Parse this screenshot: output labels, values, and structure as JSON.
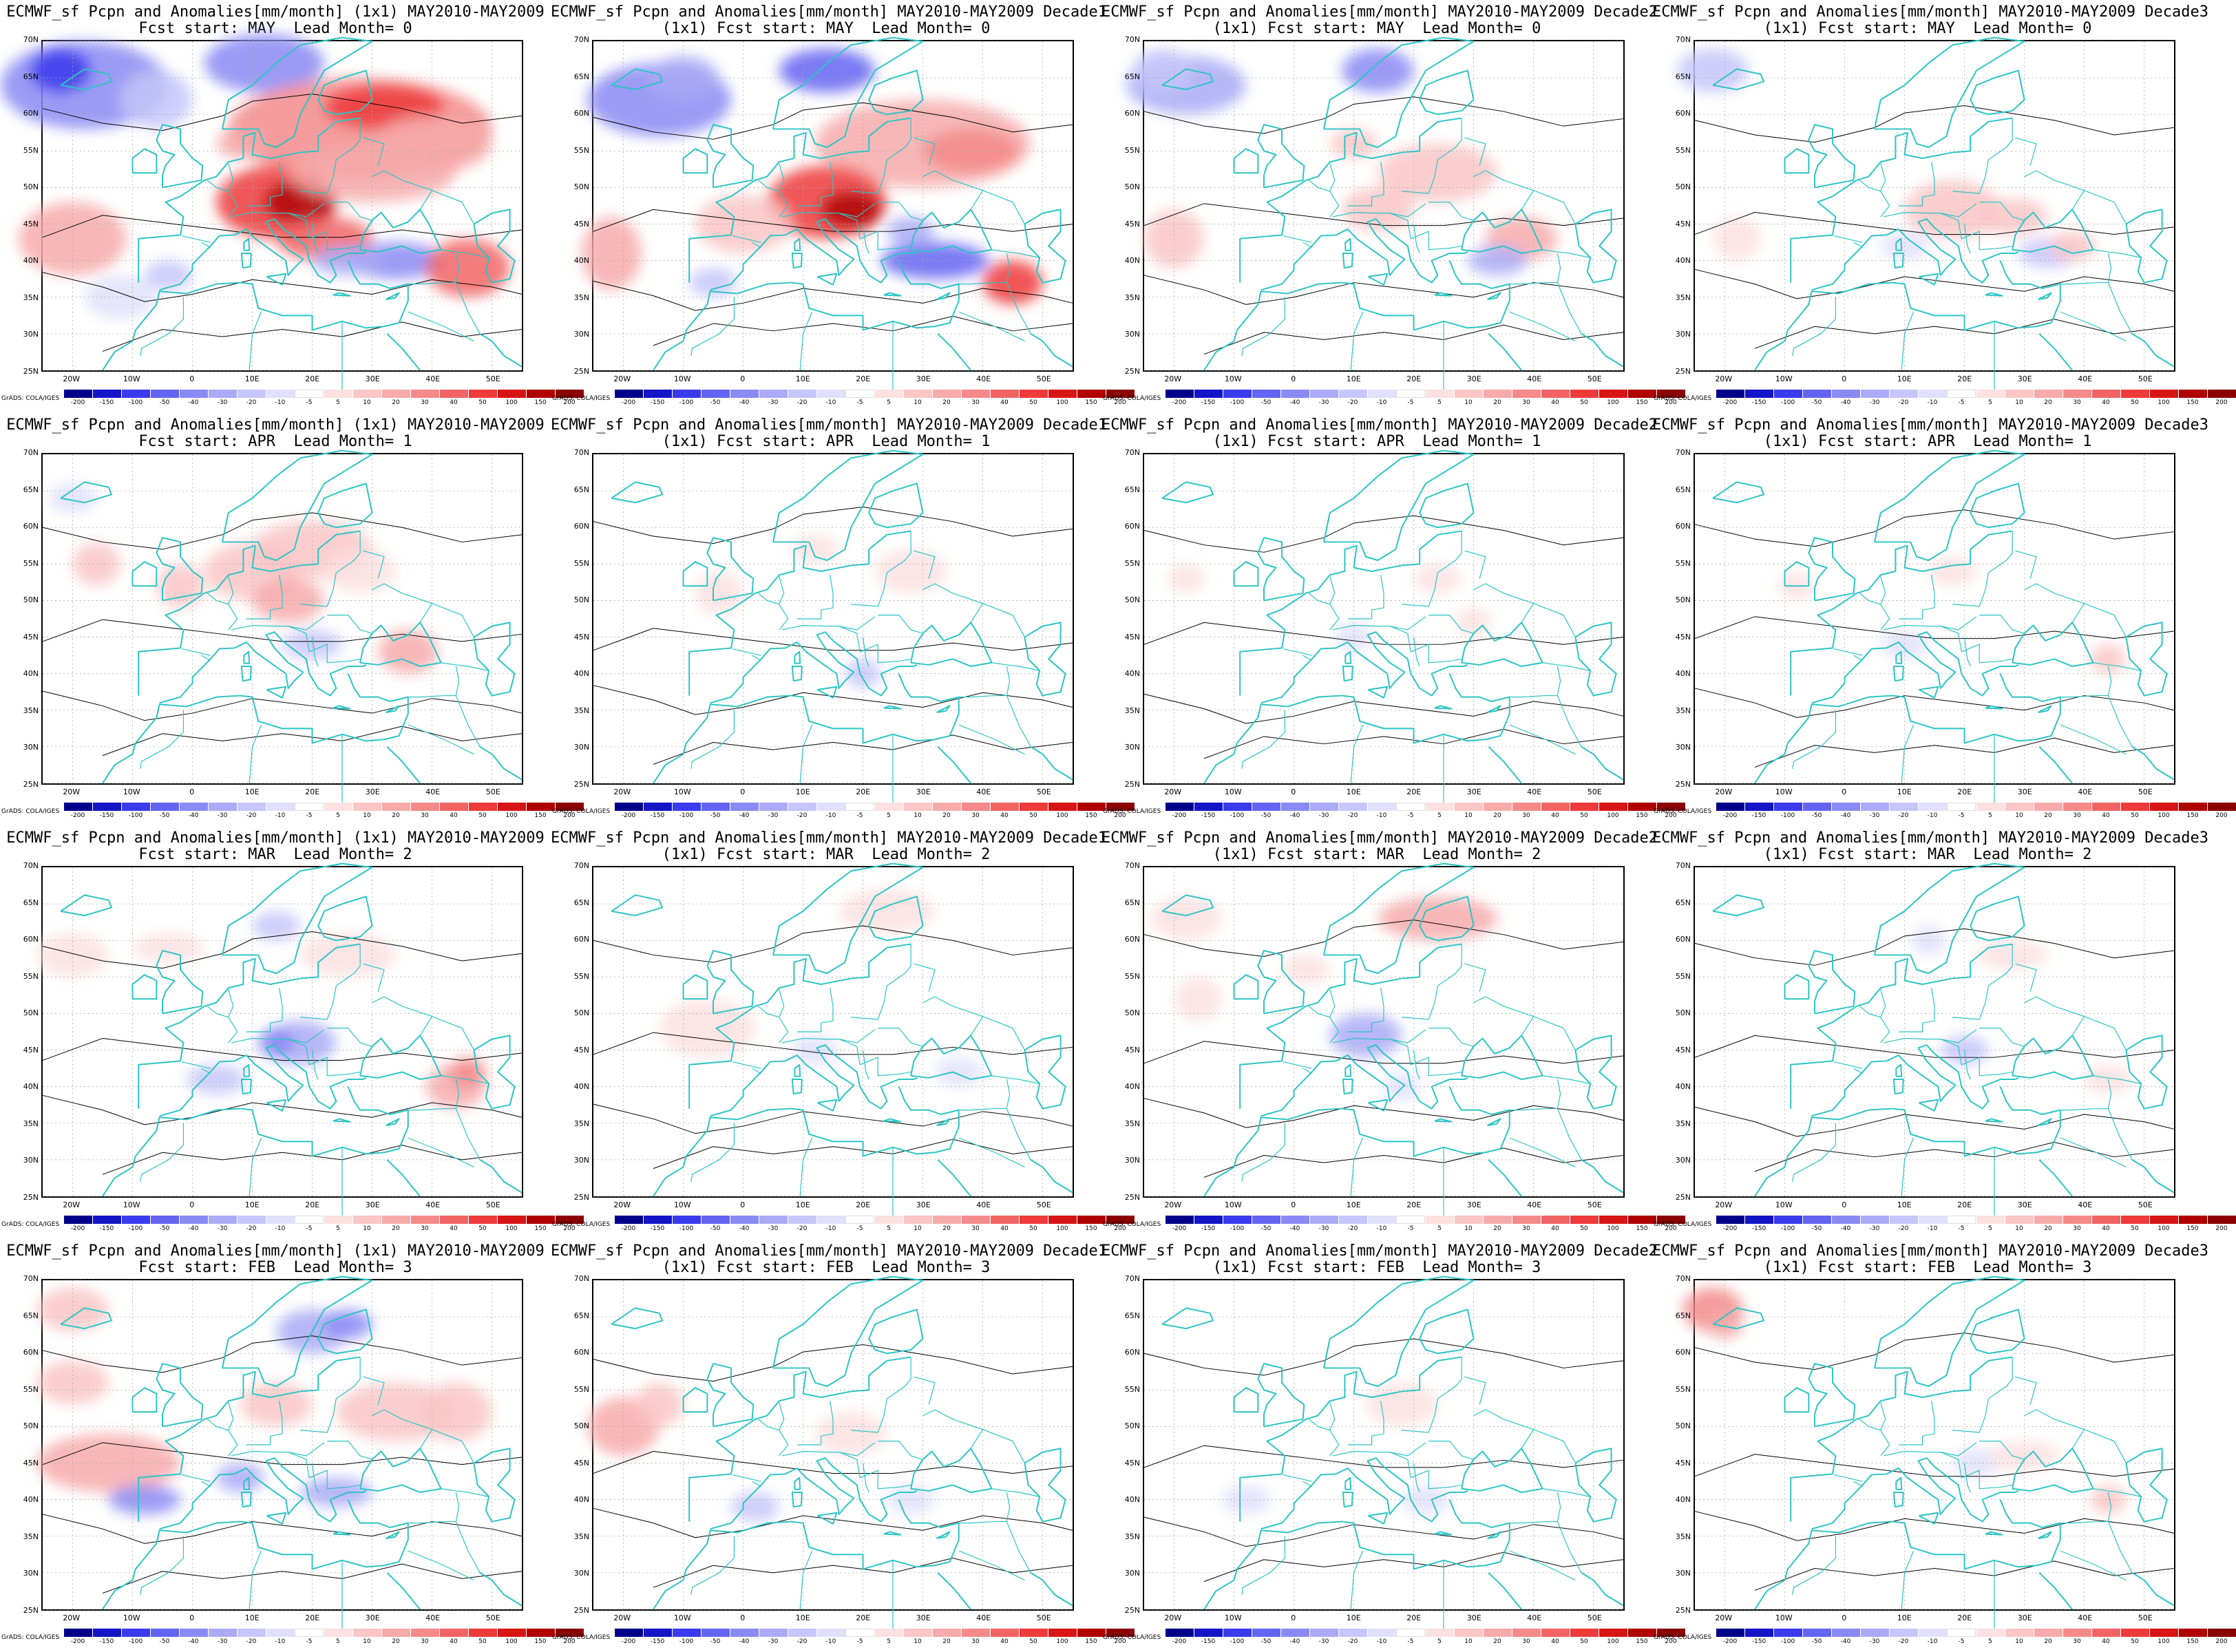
{
  "lat_labels": [
    "70N",
    "65N",
    "60N",
    "55N",
    "50N",
    "45N",
    "40N",
    "35N",
    "30N",
    "25N"
  ],
  "lon_labels": [
    "20W",
    "10W",
    "0",
    "10E",
    "20E",
    "30E",
    "40E",
    "50E"
  ],
  "credit": "GrADS: COLA/IGES",
  "colorbar": {
    "labels": [
      "-200",
      "-150",
      "-100",
      "-50",
      "-40",
      "-30",
      "-20",
      "-10",
      "-5",
      "5",
      "10",
      "20",
      "30",
      "40",
      "50",
      "100",
      "150",
      "200"
    ],
    "colors": [
      "#00008b",
      "#1515c8",
      "#3a3aee",
      "#6464f2",
      "#8a8af5",
      "#aaaaf7",
      "#c6c6fa",
      "#e0e0fc",
      "#ffffff",
      "#fde0e0",
      "#fac6c6",
      "#f7aaaa",
      "#f58a8a",
      "#f26464",
      "#ee3a3a",
      "#d81515",
      "#b00000",
      "#8b0000"
    ]
  },
  "colors": {
    "coast": "#2cc4c4",
    "contour": "#000000",
    "grid": "#aaaaaa"
  },
  "rows": [
    {
      "start": "MAY",
      "lead": "0",
      "intensity": 1.0
    },
    {
      "start": "APR",
      "lead": "1",
      "intensity": 0.35
    },
    {
      "start": "MAR",
      "lead": "2",
      "intensity": 0.4
    },
    {
      "start": "FEB",
      "lead": "3",
      "intensity": 0.35
    }
  ],
  "panels": [
    {
      "title1": "ECMWF_sf Pcpn and Anomalies[mm/month] (1x1) MAY2010-MAY2009",
      "title2": "Fcst start: MAY  Lead Month= 0"
    },
    {
      "title1": "ECMWF_sf Pcpn and Anomalies[mm/month] MAY2010-MAY2009 Decade1",
      "title2": "(1x1) Fcst start: MAY  Lead Month= 0"
    },
    {
      "title1": "ECMWF_sf Pcpn and Anomalies[mm/month] MAY2010-MAY2009 Decade2",
      "title2": "(1x1) Fcst start: MAY  Lead Month= 0"
    },
    {
      "title1": "ECMWF_sf Pcpn and Anomalies[mm/month] MAY2010-MAY2009 Decade3",
      "title2": "(1x1) Fcst start: MAY  Lead Month= 0"
    },
    {
      "title1": "ECMWF_sf Pcpn and Anomalies[mm/month] (1x1) MAY2010-MAY2009",
      "title2": "Fcst start: APR  Lead Month= 1"
    },
    {
      "title1": "ECMWF_sf Pcpn and Anomalies[mm/month] MAY2010-MAY2009 Decade1",
      "title2": "(1x1) Fcst start: APR  Lead Month= 1"
    },
    {
      "title1": "ECMWF_sf Pcpn and Anomalies[mm/month] MAY2010-MAY2009 Decade2",
      "title2": "(1x1) Fcst start: APR  Lead Month= 1"
    },
    {
      "title1": "ECMWF_sf Pcpn and Anomalies[mm/month] MAY2010-MAY2009 Decade3",
      "title2": "(1x1) Fcst start: APR  Lead Month= 1"
    },
    {
      "title1": "ECMWF_sf Pcpn and Anomalies[mm/month] (1x1) MAY2010-MAY2009",
      "title2": "Fcst start: MAR  Lead Month= 2"
    },
    {
      "title1": "ECMWF_sf Pcpn and Anomalies[mm/month] MAY2010-MAY2009 Decade1",
      "title2": "(1x1) Fcst start: MAR  Lead Month= 2"
    },
    {
      "title1": "ECMWF_sf Pcpn and Anomalies[mm/month] MAY2010-MAY2009 Decade2",
      "title2": "(1x1) Fcst start: MAR  Lead Month= 2"
    },
    {
      "title1": "ECMWF_sf Pcpn and Anomalies[mm/month] MAY2010-MAY2009 Decade3",
      "title2": "(1x1) Fcst start: MAR  Lead Month= 2"
    },
    {
      "title1": "ECMWF_sf Pcpn and Anomalies[mm/month] (1x1) MAY2010-MAY2009",
      "title2": "Fcst start: FEB  Lead Month= 3"
    },
    {
      "title1": "ECMWF_sf Pcpn and Anomalies[mm/month] MAY2010-MAY2009 Decade1",
      "title2": "(1x1) Fcst start: FEB  Lead Month= 3"
    },
    {
      "title1": "ECMWF_sf Pcpn and Anomalies[mm/month] MAY2010-MAY2009 Decade2",
      "title2": "(1x1) Fcst start: FEB  Lead Month= 3"
    },
    {
      "title1": "ECMWF_sf Pcpn and Anomalies[mm/month] MAY2010-MAY2009 Decade3",
      "title2": "(1x1) Fcst start: FEB  Lead Month= 3"
    }
  ]
}
